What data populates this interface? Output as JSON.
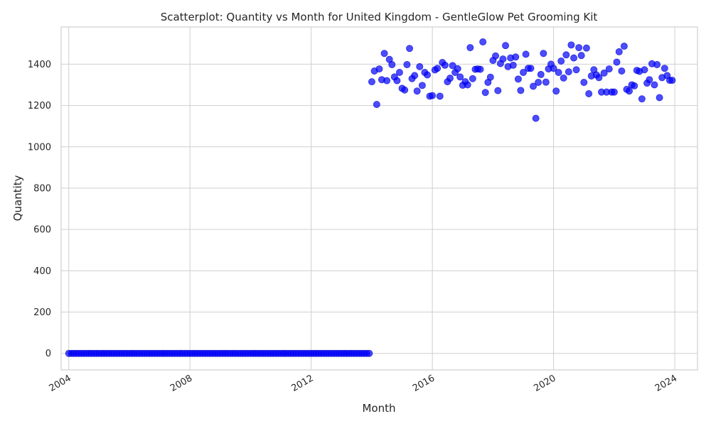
{
  "chart_data": {
    "type": "scatter",
    "title": "Scatterplot: Quantity vs Month for United Kingdom - GentleGlow Pet Grooming Kit",
    "xlabel": "Month",
    "ylabel": "Quantity",
    "x_axis_type": "date",
    "xlim": [
      "2003-10-01",
      "2024-10-01"
    ],
    "ylim": [
      -80,
      1580
    ],
    "x_ticks": [
      "2004",
      "2008",
      "2012",
      "2016",
      "2020",
      "2024"
    ],
    "y_ticks": [
      "0",
      "200",
      "400",
      "600",
      "800",
      "1000",
      "1200",
      "1400"
    ],
    "grid": true,
    "color": "#0000ff",
    "zero_series": {
      "start": "2004-01",
      "end": "2013-12",
      "value": 0
    },
    "points": [
      [
        "2014-01",
        1315
      ],
      [
        "2014-02",
        1367
      ],
      [
        "2014-03",
        1205
      ],
      [
        "2014-04",
        1377
      ],
      [
        "2014-05",
        1325
      ],
      [
        "2014-06",
        1452
      ],
      [
        "2014-07",
        1320
      ],
      [
        "2014-08",
        1423
      ],
      [
        "2014-09",
        1398
      ],
      [
        "2014-10",
        1338
      ],
      [
        "2014-11",
        1320
      ],
      [
        "2014-12",
        1360
      ],
      [
        "2015-01",
        1283
      ],
      [
        "2015-02",
        1275
      ],
      [
        "2015-03",
        1398
      ],
      [
        "2015-04",
        1476
      ],
      [
        "2015-05",
        1330
      ],
      [
        "2015-06",
        1345
      ],
      [
        "2015-07",
        1270
      ],
      [
        "2015-08",
        1388
      ],
      [
        "2015-09",
        1297
      ],
      [
        "2015-10",
        1360
      ],
      [
        "2015-11",
        1348
      ],
      [
        "2015-12",
        1245
      ],
      [
        "2016-01",
        1248
      ],
      [
        "2016-02",
        1372
      ],
      [
        "2016-03",
        1380
      ],
      [
        "2016-04",
        1245
      ],
      [
        "2016-05",
        1408
      ],
      [
        "2016-06",
        1395
      ],
      [
        "2016-07",
        1315
      ],
      [
        "2016-08",
        1332
      ],
      [
        "2016-09",
        1393
      ],
      [
        "2016-10",
        1360
      ],
      [
        "2016-11",
        1378
      ],
      [
        "2016-12",
        1338
      ],
      [
        "2017-01",
        1298
      ],
      [
        "2017-02",
        1315
      ],
      [
        "2017-03",
        1300
      ],
      [
        "2017-04",
        1480
      ],
      [
        "2017-05",
        1330
      ],
      [
        "2017-06",
        1375
      ],
      [
        "2017-07",
        1377
      ],
      [
        "2017-08",
        1375
      ],
      [
        "2017-09",
        1508
      ],
      [
        "2017-10",
        1263
      ],
      [
        "2017-11",
        1312
      ],
      [
        "2017-12",
        1337
      ],
      [
        "2018-01",
        1418
      ],
      [
        "2018-02",
        1440
      ],
      [
        "2018-03",
        1272
      ],
      [
        "2018-04",
        1403
      ],
      [
        "2018-05",
        1425
      ],
      [
        "2018-06",
        1490
      ],
      [
        "2018-07",
        1388
      ],
      [
        "2018-08",
        1430
      ],
      [
        "2018-09",
        1395
      ],
      [
        "2018-10",
        1435
      ],
      [
        "2018-11",
        1328
      ],
      [
        "2018-12",
        1273
      ],
      [
        "2019-01",
        1360
      ],
      [
        "2019-02",
        1448
      ],
      [
        "2019-03",
        1380
      ],
      [
        "2019-04",
        1380
      ],
      [
        "2019-05",
        1293
      ],
      [
        "2019-06",
        1138
      ],
      [
        "2019-07",
        1312
      ],
      [
        "2019-08",
        1350
      ],
      [
        "2019-09",
        1452
      ],
      [
        "2019-10",
        1313
      ],
      [
        "2019-11",
        1377
      ],
      [
        "2019-12",
        1400
      ],
      [
        "2020-01",
        1380
      ],
      [
        "2020-02",
        1270
      ],
      [
        "2020-03",
        1360
      ],
      [
        "2020-04",
        1415
      ],
      [
        "2020-05",
        1333
      ],
      [
        "2020-06",
        1445
      ],
      [
        "2020-07",
        1363
      ],
      [
        "2020-08",
        1493
      ],
      [
        "2020-09",
        1430
      ],
      [
        "2020-10",
        1373
      ],
      [
        "2020-11",
        1480
      ],
      [
        "2020-12",
        1442
      ],
      [
        "2021-01",
        1312
      ],
      [
        "2021-02",
        1478
      ],
      [
        "2021-03",
        1257
      ],
      [
        "2021-04",
        1343
      ],
      [
        "2021-05",
        1373
      ],
      [
        "2021-06",
        1348
      ],
      [
        "2021-07",
        1335
      ],
      [
        "2021-08",
        1265
      ],
      [
        "2021-09",
        1357
      ],
      [
        "2021-10",
        1265
      ],
      [
        "2021-11",
        1377
      ],
      [
        "2021-12",
        1265
      ],
      [
        "2022-01",
        1265
      ],
      [
        "2022-02",
        1410
      ],
      [
        "2022-03",
        1460
      ],
      [
        "2022-04",
        1367
      ],
      [
        "2022-05",
        1487
      ],
      [
        "2022-06",
        1278
      ],
      [
        "2022-07",
        1270
      ],
      [
        "2022-08",
        1300
      ],
      [
        "2022-09",
        1295
      ],
      [
        "2022-10",
        1370
      ],
      [
        "2022-11",
        1365
      ],
      [
        "2022-12",
        1232
      ],
      [
        "2023-01",
        1373
      ],
      [
        "2023-02",
        1308
      ],
      [
        "2023-03",
        1325
      ],
      [
        "2023-04",
        1402
      ],
      [
        "2023-05",
        1300
      ],
      [
        "2023-06",
        1398
      ],
      [
        "2023-07",
        1238
      ],
      [
        "2023-08",
        1335
      ],
      [
        "2023-09",
        1380
      ],
      [
        "2023-10",
        1345
      ],
      [
        "2023-11",
        1322
      ],
      [
        "2023-12",
        1322
      ]
    ]
  }
}
